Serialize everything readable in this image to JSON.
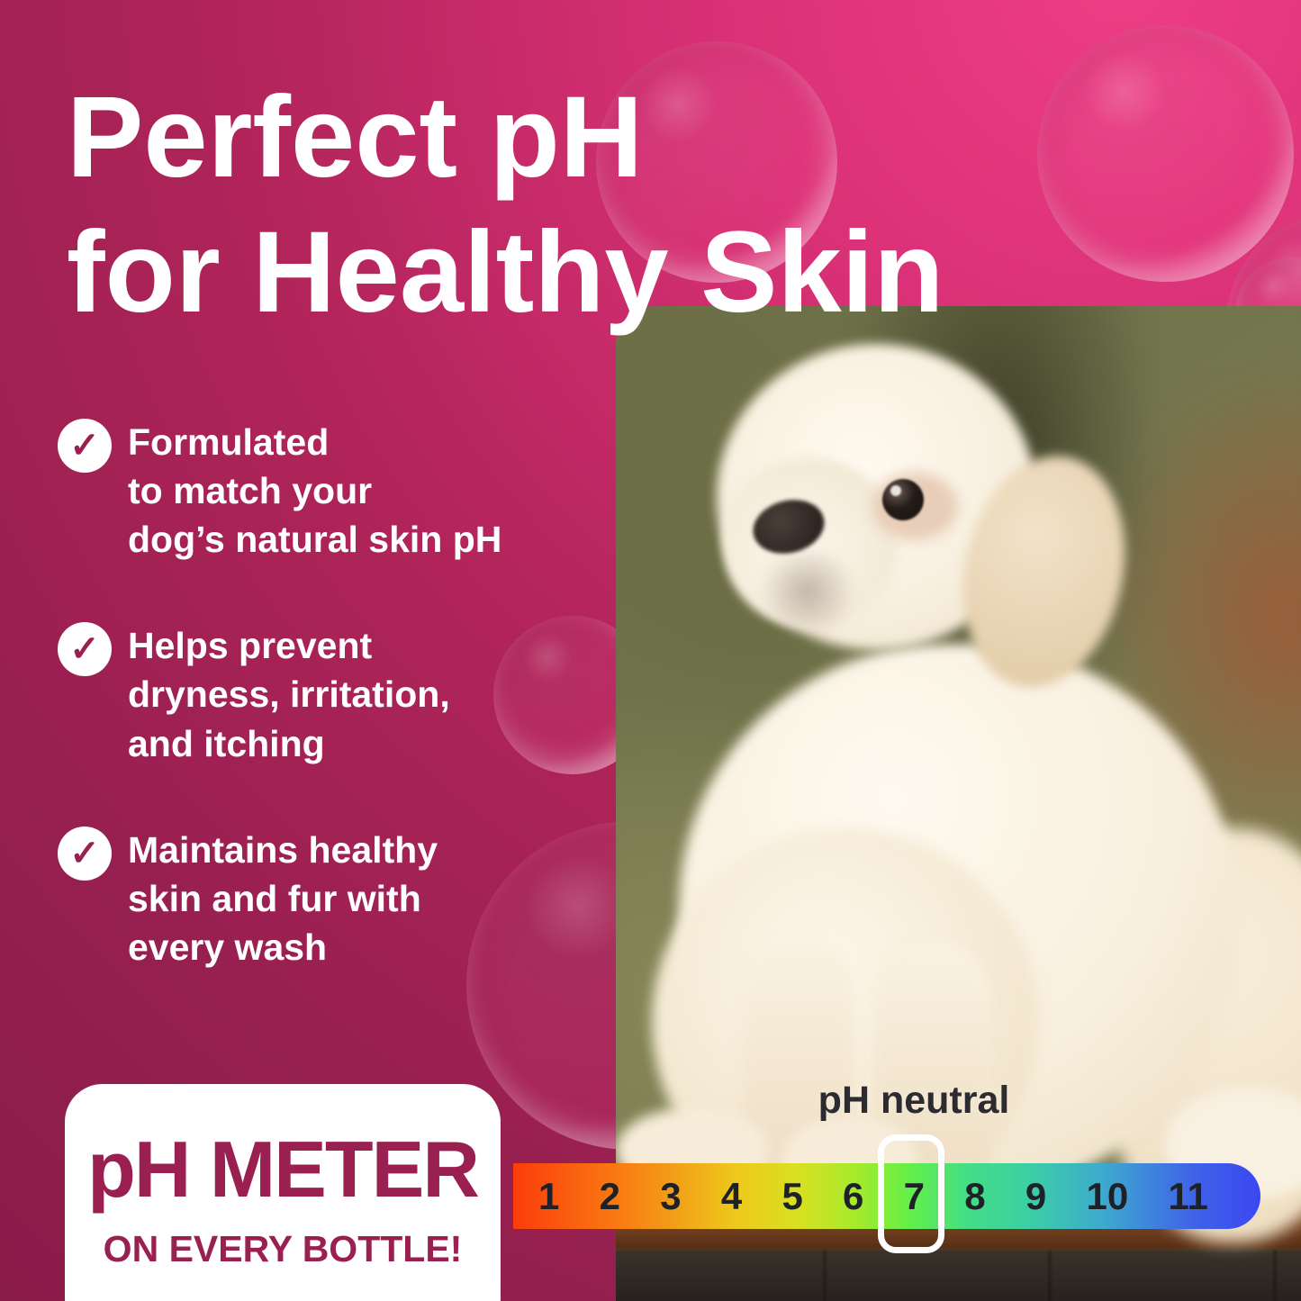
{
  "title": {
    "line1": "Perfect pH",
    "line2": "for Healthy Skin"
  },
  "benefits": [
    {
      "text": "Formulated\nto match your\ndog’s natural skin pH"
    },
    {
      "text": "Helps prevent\ndryness, irritation,\nand itching"
    },
    {
      "text": "Maintains healthy\nskin and fur with\nevery wash"
    }
  ],
  "badge": {
    "title": "pH METER",
    "subtitle": "ON EVERY BOTTLE!"
  },
  "ph_scale": {
    "neutral_label": "pH neutral",
    "highlighted_value": "7",
    "values": [
      "1",
      "2",
      "3",
      "4",
      "5",
      "6",
      "7",
      "8",
      "9",
      "10",
      "11"
    ]
  },
  "icons": {
    "check_glyph": "✓"
  },
  "photo": {
    "description": "White curly-coated puppy sitting on a wooden table against a blurred olive-green forest background"
  },
  "colors": {
    "background_dark": "#8a1c4a",
    "background_mid": "#b02459",
    "background_bright": "#ee3d86",
    "accent_dark": "#9a2051",
    "text_white": "#ffffff",
    "ph_label_dark": "#2c2c30",
    "bar_number_dark": "#1e2227",
    "bar_red": "#fb3d0c",
    "bar_orange": "#f29c18",
    "bar_yellow": "#eec91b",
    "bar_green": "#63ef49",
    "bar_teal": "#3bcfa4",
    "bar_blue": "#3f63e8",
    "bar_deep_blue": "#3b47f2",
    "wood_brown": "#7c4a28",
    "photo_olive": "#73744c"
  }
}
